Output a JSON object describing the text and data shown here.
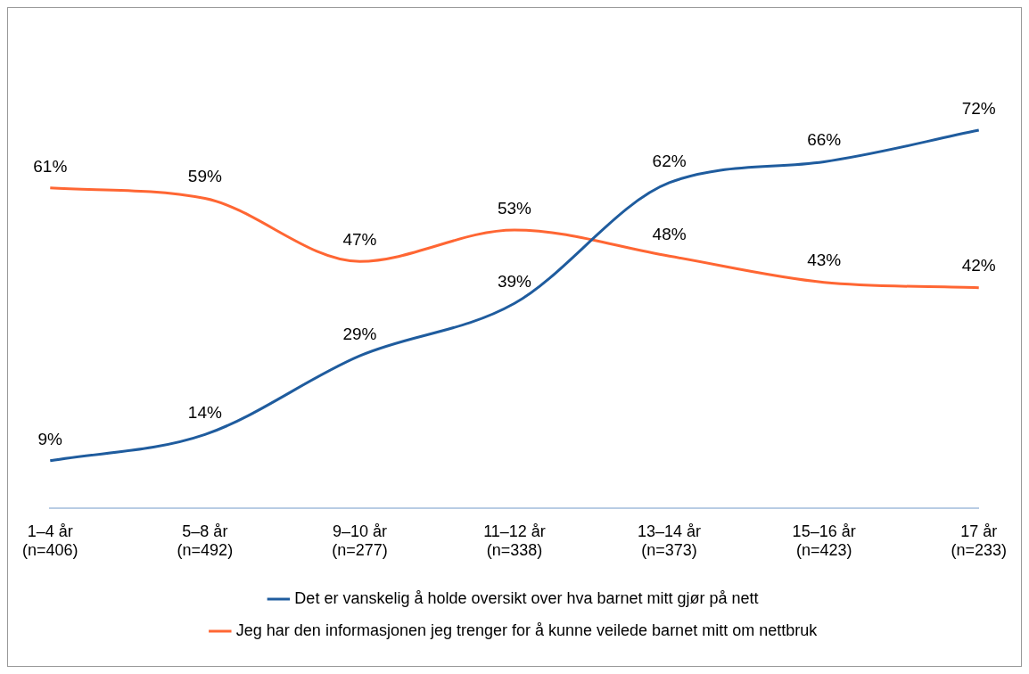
{
  "chart_data": {
    "type": "line",
    "categories": [
      "1–4 år (n=406)",
      "5–8 år (n=492)",
      "9–10 år (n=277)",
      "11–12 år (n=338)",
      "13–14 år (n=373)",
      "15–16 år (n=423)",
      "17 år (n=233)"
    ],
    "series": [
      {
        "name": "Det er vanskelig å holde oversikt over hva barnet mitt gjør på nett",
        "color": "#1f5c9e",
        "values": [
          9,
          14,
          29,
          39,
          62,
          66,
          72
        ],
        "value_labels": [
          "9%",
          "14%",
          "29%",
          "39%",
          "62%",
          "66%",
          "72%"
        ]
      },
      {
        "name": "Jeg har den informasjonen jeg trenger for å kunne veilede barnet mitt om nettbruk",
        "color": "#ff6633",
        "values": [
          61,
          59,
          47,
          53,
          48,
          43,
          42
        ],
        "value_labels": [
          "61%",
          "59%",
          "47%",
          "53%",
          "48%",
          "43%",
          "42%"
        ]
      }
    ],
    "legend": "bottom",
    "grid": false,
    "marker": "none",
    "line_style": "solid"
  }
}
